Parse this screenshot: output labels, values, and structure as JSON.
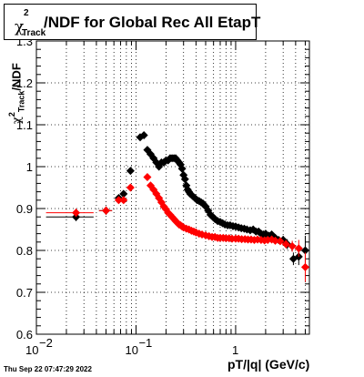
{
  "title": {
    "symbol": "χ",
    "superscript": "2",
    "subscript": "Track",
    "text": "/NDF for Global Rec All EtapT"
  },
  "ylabel": {
    "symbol": "χ",
    "superscript": "2",
    "subscript": "Track",
    "text": "/NDF"
  },
  "xlabel": "pT/|q| (GeV/c)",
  "timestamp": "Thu Sep 22 07:47:29 2022",
  "colors": {
    "series_black": "#000000",
    "series_red": "#ff0000",
    "grid": "#000000",
    "background": "#ffffff"
  },
  "chart_data": {
    "type": "scatter",
    "xscale": "log",
    "xlim": [
      0.01,
      5.5
    ],
    "ylim": [
      0.6,
      1.3
    ],
    "grid": true,
    "legend": "none",
    "yticks": [
      "0.6",
      "0.7",
      "0.8",
      "0.9",
      "1",
      "1.1",
      "1.2",
      "1.3"
    ],
    "xticks": [
      {
        "base": "10",
        "exp": "−2"
      },
      {
        "base": "10",
        "exp": "−1"
      },
      {
        "base": "1",
        "exp": ""
      }
    ],
    "series": [
      {
        "color": "#000000",
        "marker": "diamond",
        "points": [
          [
            0.025,
            0.88,
            0.01
          ],
          [
            0.05,
            0.895,
            0.01
          ],
          [
            0.067,
            0.925,
            0.005
          ],
          [
            0.075,
            0.935,
            0.005
          ],
          [
            0.088,
            0.99,
            0.004
          ],
          [
            0.11,
            1.07,
            0.004
          ],
          [
            0.12,
            1.075,
            0.004
          ],
          [
            0.13,
            1.04,
            0.003
          ],
          [
            0.14,
            1.03,
            0.003
          ],
          [
            0.15,
            1.02,
            0.003
          ],
          [
            0.16,
            1.01,
            0.003
          ],
          [
            0.17,
            1.0,
            0.003
          ],
          [
            0.18,
            1.01,
            0.003
          ],
          [
            0.19,
            1.01,
            0.003
          ],
          [
            0.2,
            1.015,
            0.003
          ],
          [
            0.21,
            1.015,
            0.003
          ],
          [
            0.22,
            1.02,
            0.003
          ],
          [
            0.23,
            1.02,
            0.003
          ],
          [
            0.24,
            1.02,
            0.003
          ],
          [
            0.25,
            1.02,
            0.003
          ],
          [
            0.26,
            1.015,
            0.003
          ],
          [
            0.27,
            1.01,
            0.003
          ],
          [
            0.28,
            1.005,
            0.003
          ],
          [
            0.29,
            0.995,
            0.003
          ],
          [
            0.3,
            0.98,
            0.003
          ],
          [
            0.31,
            0.97,
            0.003
          ],
          [
            0.32,
            0.955,
            0.003
          ],
          [
            0.33,
            0.945,
            0.003
          ],
          [
            0.34,
            0.94,
            0.003
          ],
          [
            0.35,
            0.935,
            0.003
          ],
          [
            0.37,
            0.93,
            0.003
          ],
          [
            0.39,
            0.925,
            0.003
          ],
          [
            0.41,
            0.92,
            0.003
          ],
          [
            0.43,
            0.918,
            0.003
          ],
          [
            0.45,
            0.915,
            0.003
          ],
          [
            0.47,
            0.912,
            0.003
          ],
          [
            0.5,
            0.905,
            0.003
          ],
          [
            0.53,
            0.895,
            0.003
          ],
          [
            0.56,
            0.885,
            0.003
          ],
          [
            0.59,
            0.88,
            0.003
          ],
          [
            0.62,
            0.875,
            0.003
          ],
          [
            0.66,
            0.87,
            0.003
          ],
          [
            0.7,
            0.868,
            0.003
          ],
          [
            0.74,
            0.865,
            0.003
          ],
          [
            0.78,
            0.862,
            0.003
          ],
          [
            0.83,
            0.86,
            0.003
          ],
          [
            0.88,
            0.86,
            0.003
          ],
          [
            0.94,
            0.858,
            0.003
          ],
          [
            1.0,
            0.857,
            0.003
          ],
          [
            1.07,
            0.855,
            0.003
          ],
          [
            1.14,
            0.853,
            0.003
          ],
          [
            1.22,
            0.852,
            0.003
          ],
          [
            1.3,
            0.85,
            0.004
          ],
          [
            1.4,
            0.848,
            0.004
          ],
          [
            1.5,
            0.85,
            0.004
          ],
          [
            1.6,
            0.845,
            0.004
          ],
          [
            1.7,
            0.845,
            0.004
          ],
          [
            1.8,
            0.84,
            0.005
          ],
          [
            1.9,
            0.838,
            0.005
          ],
          [
            2.0,
            0.84,
            0.005
          ],
          [
            2.15,
            0.835,
            0.006
          ],
          [
            2.3,
            0.838,
            0.006
          ],
          [
            2.5,
            0.83,
            0.007
          ],
          [
            2.7,
            0.825,
            0.008
          ],
          [
            3.0,
            0.825,
            0.01
          ],
          [
            3.3,
            0.815,
            0.012
          ],
          [
            3.8,
            0.78,
            0.015
          ],
          [
            4.3,
            0.785,
            0.02
          ],
          [
            5.0,
            0.8,
            0.035
          ]
        ]
      },
      {
        "color": "#ff0000",
        "marker": "diamond",
        "points": [
          [
            0.025,
            0.89,
            0.01
          ],
          [
            0.05,
            0.895,
            0.01
          ],
          [
            0.067,
            0.92,
            0.005
          ],
          [
            0.075,
            0.92,
            0.005
          ],
          [
            0.088,
            0.95,
            0.004
          ],
          [
            0.13,
            0.975,
            0.003
          ],
          [
            0.14,
            0.955,
            0.003
          ],
          [
            0.15,
            0.945,
            0.003
          ],
          [
            0.16,
            0.935,
            0.003
          ],
          [
            0.17,
            0.925,
            0.003
          ],
          [
            0.18,
            0.915,
            0.003
          ],
          [
            0.19,
            0.905,
            0.003
          ],
          [
            0.2,
            0.898,
            0.003
          ],
          [
            0.21,
            0.89,
            0.003
          ],
          [
            0.22,
            0.885,
            0.003
          ],
          [
            0.23,
            0.88,
            0.003
          ],
          [
            0.24,
            0.875,
            0.003
          ],
          [
            0.25,
            0.87,
            0.003
          ],
          [
            0.26,
            0.866,
            0.003
          ],
          [
            0.27,
            0.862,
            0.003
          ],
          [
            0.28,
            0.86,
            0.003
          ],
          [
            0.29,
            0.857,
            0.003
          ],
          [
            0.3,
            0.855,
            0.003
          ],
          [
            0.32,
            0.852,
            0.003
          ],
          [
            0.34,
            0.85,
            0.003
          ],
          [
            0.36,
            0.847,
            0.003
          ],
          [
            0.38,
            0.845,
            0.003
          ],
          [
            0.4,
            0.843,
            0.003
          ],
          [
            0.43,
            0.84,
            0.003
          ],
          [
            0.46,
            0.838,
            0.003
          ],
          [
            0.5,
            0.836,
            0.003
          ],
          [
            0.54,
            0.834,
            0.003
          ],
          [
            0.58,
            0.832,
            0.003
          ],
          [
            0.62,
            0.832,
            0.003
          ],
          [
            0.66,
            0.83,
            0.003
          ],
          [
            0.7,
            0.83,
            0.003
          ],
          [
            0.75,
            0.83,
            0.003
          ],
          [
            0.8,
            0.829,
            0.003
          ],
          [
            0.86,
            0.829,
            0.003
          ],
          [
            0.92,
            0.828,
            0.003
          ],
          [
            1.0,
            0.828,
            0.003
          ],
          [
            1.07,
            0.828,
            0.003
          ],
          [
            1.15,
            0.827,
            0.003
          ],
          [
            1.24,
            0.827,
            0.003
          ],
          [
            1.33,
            0.826,
            0.004
          ],
          [
            1.43,
            0.826,
            0.004
          ],
          [
            1.54,
            0.825,
            0.004
          ],
          [
            1.66,
            0.826,
            0.004
          ],
          [
            1.8,
            0.825,
            0.005
          ],
          [
            1.95,
            0.824,
            0.005
          ],
          [
            2.1,
            0.825,
            0.006
          ],
          [
            2.3,
            0.826,
            0.006
          ],
          [
            2.5,
            0.823,
            0.007
          ],
          [
            2.8,
            0.822,
            0.008
          ],
          [
            3.2,
            0.815,
            0.01
          ],
          [
            3.7,
            0.81,
            0.013
          ],
          [
            4.3,
            0.805,
            0.02
          ],
          [
            5.0,
            0.76,
            0.035
          ]
        ]
      }
    ]
  }
}
